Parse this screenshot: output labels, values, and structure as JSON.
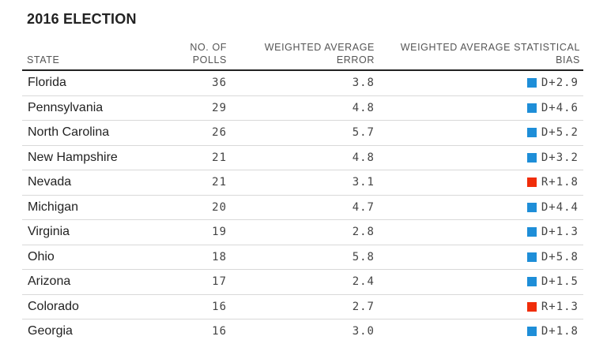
{
  "title": "2016 ELECTION",
  "columns": {
    "state": "STATE",
    "polls_line1": "NO. OF",
    "polls_line2": "POLLS",
    "error_line1": "WEIGHTED AVERAGE",
    "error_line2": "ERROR",
    "bias_line1": "WEIGHTED AVERAGE STATISTICAL",
    "bias_line2": "BIAS"
  },
  "colors": {
    "D": "#1e8ed8",
    "R": "#f02d0a"
  },
  "chart_data": {
    "type": "table",
    "title": "2016 ELECTION",
    "headers": [
      "STATE",
      "NO. OF POLLS",
      "WEIGHTED AVERAGE ERROR",
      "WEIGHTED AVERAGE STATISTICAL BIAS"
    ],
    "rows": [
      {
        "state": "Florida",
        "polls": "36",
        "error": "3.8",
        "party": "D",
        "bias": "D+2.9"
      },
      {
        "state": "Pennsylvania",
        "polls": "29",
        "error": "4.8",
        "party": "D",
        "bias": "D+4.6"
      },
      {
        "state": "North Carolina",
        "polls": "26",
        "error": "5.7",
        "party": "D",
        "bias": "D+5.2"
      },
      {
        "state": "New Hampshire",
        "polls": "21",
        "error": "4.8",
        "party": "D",
        "bias": "D+3.2"
      },
      {
        "state": "Nevada",
        "polls": "21",
        "error": "3.1",
        "party": "R",
        "bias": "R+1.8"
      },
      {
        "state": "Michigan",
        "polls": "20",
        "error": "4.7",
        "party": "D",
        "bias": "D+4.4"
      },
      {
        "state": "Virginia",
        "polls": "19",
        "error": "2.8",
        "party": "D",
        "bias": "D+1.3"
      },
      {
        "state": "Ohio",
        "polls": "18",
        "error": "5.8",
        "party": "D",
        "bias": "D+5.8"
      },
      {
        "state": "Arizona",
        "polls": "17",
        "error": "2.4",
        "party": "D",
        "bias": "D+1.5"
      },
      {
        "state": "Colorado",
        "polls": "16",
        "error": "2.7",
        "party": "R",
        "bias": "R+1.3"
      },
      {
        "state": "Georgia",
        "polls": "16",
        "error": "3.0",
        "party": "D",
        "bias": "D+1.8"
      }
    ]
  }
}
